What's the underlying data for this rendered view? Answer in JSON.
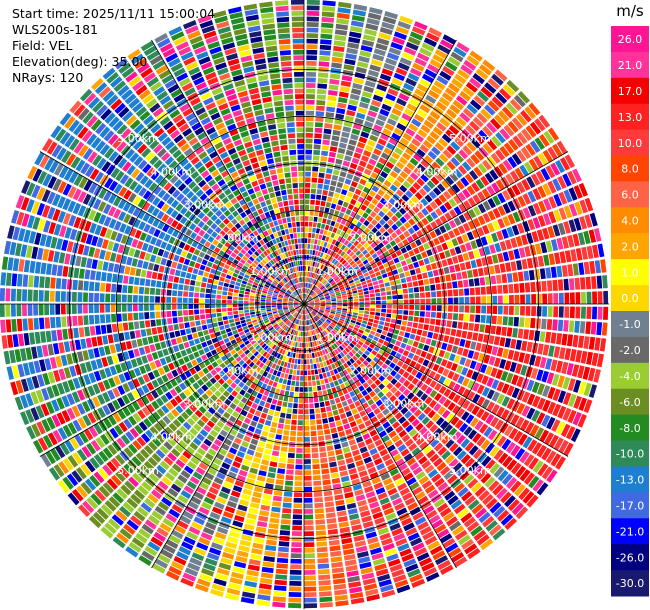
{
  "header": {
    "start_time": "Start time: 2025/11/11 15:00:04",
    "instrument": "WLS200s-181",
    "field": "Field: VEL",
    "elevation": "Elevation(deg): 35.00",
    "nrays": "NRays: 120"
  },
  "chart_data": {
    "type": "heatmap",
    "projection": "polar-ppi",
    "field": "VEL",
    "n_rays": 120,
    "elevation_deg": 35.0,
    "range_rings_km": [
      1,
      2,
      3,
      4,
      5
    ],
    "ring_labels": [
      "1.00km",
      "2.00km",
      "3.00km",
      "4.00km",
      "5.00km"
    ],
    "max_range_km": 6.5,
    "colorbar": {
      "unit": "m/s",
      "ticks": [
        "26.0",
        "21.0",
        "17.0",
        "13.0",
        "10.0",
        "8.0",
        "6.0",
        "4.0",
        "2.0",
        "1.0",
        "0.0",
        "-1.0",
        "-2.0",
        "-4.0",
        "-6.0",
        "-8.0",
        "-10.0",
        "-13.0",
        "-17.0",
        "-21.0",
        "-26.0",
        "-30.0"
      ],
      "bounds": [
        30,
        26,
        21,
        17,
        13,
        10,
        8,
        6,
        4,
        2,
        1,
        0,
        -1,
        -2,
        -4,
        -6,
        -8,
        -10,
        -13,
        -17,
        -21,
        -26,
        -30
      ],
      "colors": [
        "#ff1493",
        "#ff3399",
        "#f50000",
        "#ff2020",
        "#ff3a3a",
        "#ff4500",
        "#ff6347",
        "#ff8c00",
        "#ffa500",
        "#ffff00",
        "#ffd700",
        "#708090",
        "#696969",
        "#9acd32",
        "#6b8e23",
        "#228b22",
        "#2e8b57",
        "#1e7fd0",
        "#4169e1",
        "#0000ff",
        "#000080",
        "#191970"
      ]
    },
    "wind_pattern": {
      "description_values_ms": "positive velocities toward east/southeast sector, negative toward west/northwest sector",
      "peak_positive": 17,
      "peak_negative": -13
    }
  },
  "colors": {
    "background": "#ffffff",
    "grid": "#000000",
    "ring_label": "#ffffff"
  }
}
